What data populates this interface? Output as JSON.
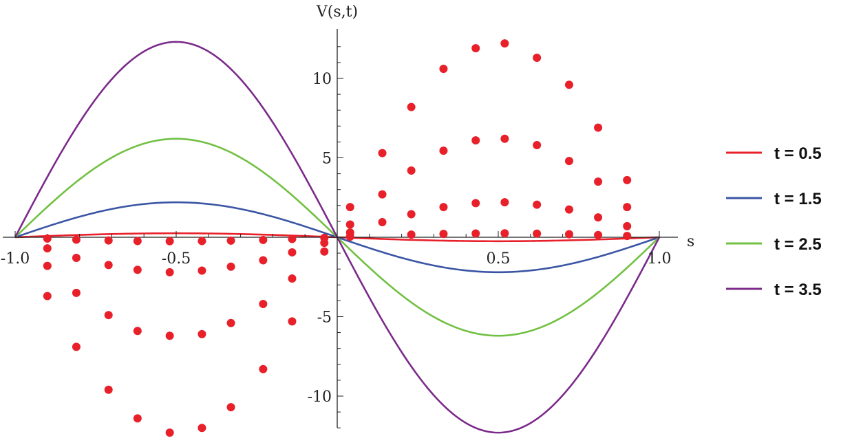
{
  "chart_data": {
    "type": "line",
    "title": "",
    "xlabel": "s",
    "ylabel": "V(s,t)",
    "xlim": [
      -1.0,
      1.0
    ],
    "ylim": [
      -13,
      13
    ],
    "x_ticks": [
      {
        "value": -1.0,
        "label": "-1.0"
      },
      {
        "value": -0.5,
        "label": "-0.5"
      },
      {
        "value": 0.5,
        "label": "0.5"
      },
      {
        "value": 1.0,
        "label": "1.0"
      }
    ],
    "y_ticks": [
      {
        "value": -10,
        "label": "-10"
      },
      {
        "value": -5,
        "label": "-5"
      },
      {
        "value": 5,
        "label": "5"
      },
      {
        "value": 10,
        "label": "10"
      }
    ],
    "grid": false,
    "legend_position": "right",
    "marker_color": "#e8202a",
    "series": [
      {
        "name": "t = 0.5",
        "label": "t = 0.5",
        "color": "#e8202a",
        "amplitude": 0.25,
        "markers": [
          {
            "x": -0.9,
            "y": -0.08
          },
          {
            "x": -0.81,
            "y": -0.15
          },
          {
            "x": -0.71,
            "y": -0.2
          },
          {
            "x": -0.62,
            "y": -0.24
          },
          {
            "x": -0.52,
            "y": -0.25
          },
          {
            "x": -0.42,
            "y": -0.24
          },
          {
            "x": -0.33,
            "y": -0.21
          },
          {
            "x": -0.23,
            "y": -0.17
          },
          {
            "x": -0.14,
            "y": -0.11
          },
          {
            "x": -0.04,
            "y": -0.04
          },
          {
            "x": 0.04,
            "y": 0.04
          },
          {
            "x": 0.23,
            "y": 0.17
          },
          {
            "x": 0.33,
            "y": 0.21
          },
          {
            "x": 0.43,
            "y": 0.24
          },
          {
            "x": 0.52,
            "y": 0.25
          },
          {
            "x": 0.62,
            "y": 0.23
          },
          {
            "x": 0.72,
            "y": 0.19
          },
          {
            "x": 0.81,
            "y": 0.14
          },
          {
            "x": 0.9,
            "y": 0.08
          }
        ]
      },
      {
        "name": "t = 1.5",
        "label": "t = 1.5",
        "color": "#3a55a4",
        "amplitude": 2.2,
        "markers": [
          {
            "x": -0.9,
            "y": -0.7
          },
          {
            "x": -0.81,
            "y": -1.3
          },
          {
            "x": -0.71,
            "y": -1.75
          },
          {
            "x": -0.62,
            "y": -2.05
          },
          {
            "x": -0.52,
            "y": -2.2
          },
          {
            "x": -0.42,
            "y": -2.1
          },
          {
            "x": -0.33,
            "y": -1.85
          },
          {
            "x": -0.23,
            "y": -1.45
          },
          {
            "x": -0.14,
            "y": -0.95
          },
          {
            "x": -0.04,
            "y": -0.35
          },
          {
            "x": 0.04,
            "y": 0.3
          },
          {
            "x": 0.14,
            "y": 0.95
          },
          {
            "x": 0.23,
            "y": 1.45
          },
          {
            "x": 0.33,
            "y": 1.9
          },
          {
            "x": 0.43,
            "y": 2.15
          },
          {
            "x": 0.52,
            "y": 2.2
          },
          {
            "x": 0.62,
            "y": 2.05
          },
          {
            "x": 0.72,
            "y": 1.75
          },
          {
            "x": 0.81,
            "y": 1.25
          },
          {
            "x": 0.9,
            "y": 0.7
          }
        ]
      },
      {
        "name": "t = 2.5",
        "label": "t = 2.5",
        "color": "#72c043",
        "amplitude": 6.2,
        "markers": [
          {
            "x": -0.9,
            "y": -1.8
          },
          {
            "x": -0.81,
            "y": -3.5
          },
          {
            "x": -0.71,
            "y": -4.9
          },
          {
            "x": -0.62,
            "y": -5.9
          },
          {
            "x": -0.52,
            "y": -6.2
          },
          {
            "x": -0.42,
            "y": -6.1
          },
          {
            "x": -0.33,
            "y": -5.4
          },
          {
            "x": -0.23,
            "y": -4.2
          },
          {
            "x": -0.14,
            "y": -2.6
          },
          {
            "x": -0.04,
            "y": -0.9
          },
          {
            "x": 0.04,
            "y": 0.8
          },
          {
            "x": 0.14,
            "y": 2.7
          },
          {
            "x": 0.23,
            "y": 4.2
          },
          {
            "x": 0.33,
            "y": 5.45
          },
          {
            "x": 0.43,
            "y": 6.1
          },
          {
            "x": 0.52,
            "y": 6.2
          },
          {
            "x": 0.62,
            "y": 5.8
          },
          {
            "x": 0.72,
            "y": 4.8
          },
          {
            "x": 0.81,
            "y": 3.5
          },
          {
            "x": 0.9,
            "y": 1.9
          }
        ]
      },
      {
        "name": "t = 3.5",
        "label": "t = 3.5",
        "color": "#7b2a8a",
        "amplitude": 12.3,
        "markers": [
          {
            "x": -0.9,
            "y": -3.7
          },
          {
            "x": -0.81,
            "y": -6.9
          },
          {
            "x": -0.71,
            "y": -9.6
          },
          {
            "x": -0.62,
            "y": -11.4
          },
          {
            "x": -0.52,
            "y": -12.3
          },
          {
            "x": -0.42,
            "y": -12.0
          },
          {
            "x": -0.33,
            "y": -10.7
          },
          {
            "x": -0.23,
            "y": -8.3
          },
          {
            "x": -0.14,
            "y": -5.3
          },
          {
            "x": 0.04,
            "y": 1.9
          },
          {
            "x": 0.14,
            "y": 5.3
          },
          {
            "x": 0.23,
            "y": 8.2
          },
          {
            "x": 0.33,
            "y": 10.6
          },
          {
            "x": 0.43,
            "y": 11.9
          },
          {
            "x": 0.52,
            "y": 12.2
          },
          {
            "x": 0.62,
            "y": 11.3
          },
          {
            "x": 0.72,
            "y": 9.6
          },
          {
            "x": 0.81,
            "y": 6.9
          },
          {
            "x": 0.9,
            "y": 3.6
          }
        ]
      }
    ]
  }
}
